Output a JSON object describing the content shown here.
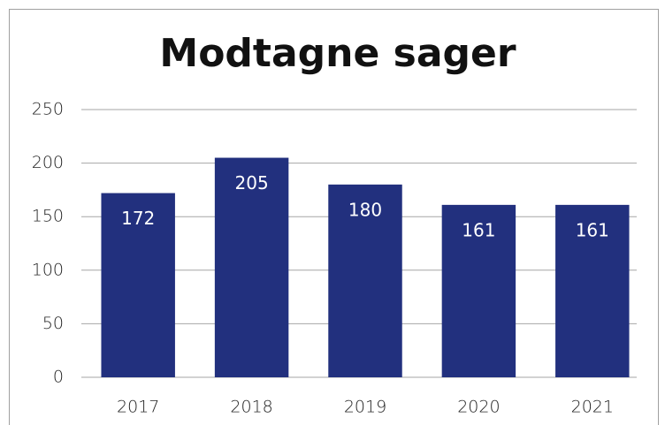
{
  "chart_data": {
    "type": "bar",
    "title": "Modtagne sager",
    "categories": [
      "2017",
      "2018",
      "2019",
      "2020",
      "2021"
    ],
    "values": [
      172,
      205,
      180,
      161,
      161
    ],
    "color": "#22307e",
    "ylim": [
      0,
      250
    ],
    "yticks": [
      0,
      50,
      100,
      150,
      200,
      250
    ],
    "grid": true
  }
}
